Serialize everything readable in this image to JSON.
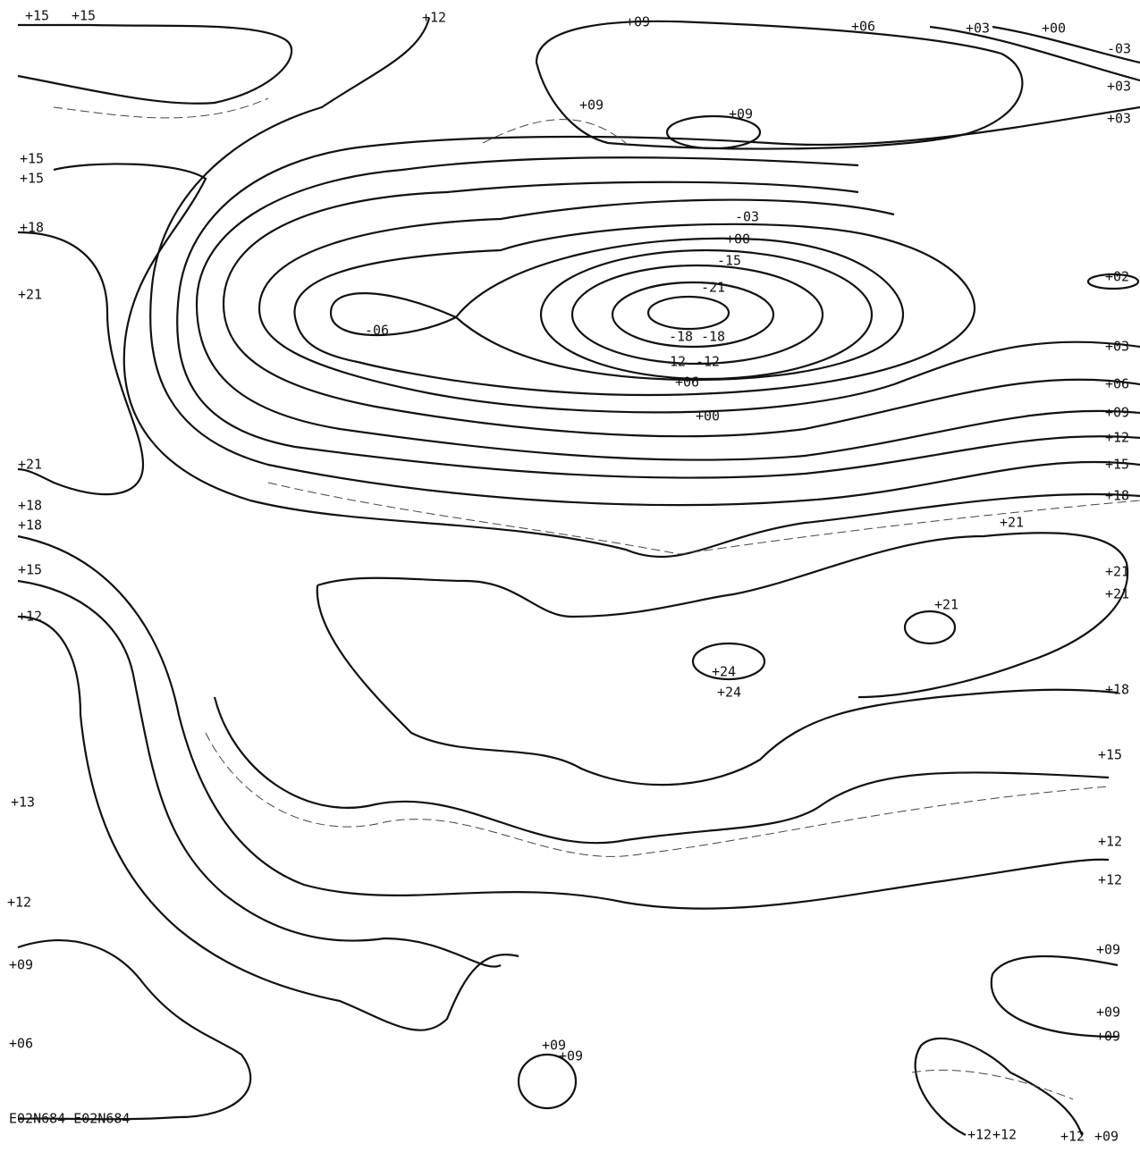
{
  "labels": [
    "+15",
    "+15",
    "+12",
    "+09",
    "+06",
    "+03",
    "+00",
    "-03",
    "+03",
    "+03",
    "+09",
    "+09",
    "+15",
    "+15",
    "+18",
    "+21",
    "-03",
    "+00",
    "-15",
    "-21",
    "-06",
    "-18",
    "-18",
    "-12",
    "-12",
    "+06",
    "+00",
    "+02",
    "+03",
    "+06",
    "+09",
    "+12",
    "+15",
    "+18",
    "+21",
    "+18",
    "+18",
    "+15",
    "+12",
    "+21",
    "+21",
    "+21",
    "+21",
    "+24",
    "+24",
    "+18",
    "+15",
    "+13",
    "+12",
    "+12",
    "+12",
    "+09",
    "+09",
    "+09",
    "+09",
    "+06",
    "+09",
    "+09",
    "+12",
    "+12",
    "+12",
    "+09"
  ],
  "footer": "E02N684 E02N684"
}
